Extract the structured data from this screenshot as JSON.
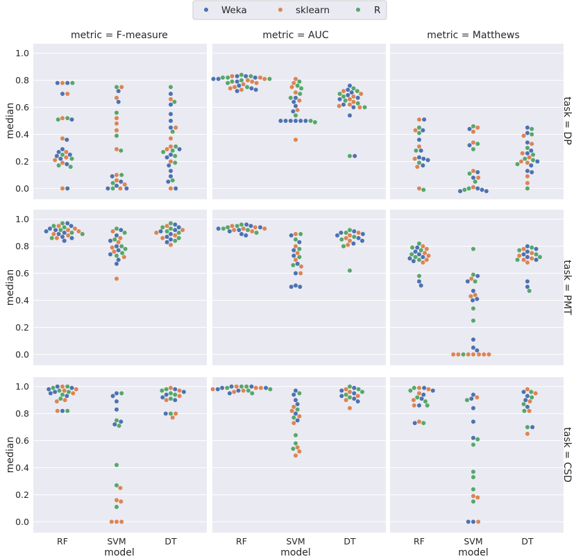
{
  "chart_data": {
    "type": "scatter",
    "subtype": "swarm-grid",
    "legend": {
      "placement": "top-center",
      "entries": [
        {
          "name": "Weka",
          "color": "#4c72b0"
        },
        {
          "name": "sklearn",
          "color": "#dd8452"
        },
        {
          "name": "R",
          "color": "#55a868"
        }
      ]
    },
    "columns": [
      "metric = F-measure",
      "metric = AUC",
      "metric = Matthews"
    ],
    "rows": [
      "task = DP",
      "task = PMT",
      "task = CSD"
    ],
    "categories": [
      "RF",
      "SVM",
      "DT"
    ],
    "xlabel": "model",
    "ylabel": "median",
    "ylim": [
      -0.08,
      1.07
    ],
    "yticks": [
      "0.0",
      "0.2",
      "0.4",
      "0.6",
      "0.8",
      "1.0"
    ],
    "grid": true,
    "panels": [
      {
        "row": 0,
        "col": 0,
        "series": {
          "RF": {
            "Weka": [
              0.78,
              0.78,
              0.7,
              0.51,
              0.36,
              0.29,
              0.27,
              0.25,
              0.24,
              0.22,
              0.18,
              0.0
            ],
            "sklearn": [
              0.78,
              0.7,
              0.52,
              0.37,
              0.27,
              0.23,
              0.21,
              0.19,
              0.0
            ],
            "R": [
              0.78,
              0.52,
              0.51,
              0.25,
              0.22,
              0.17,
              0.16
            ]
          },
          "SVM": {
            "Weka": [
              0.72,
              0.64,
              0.09,
              0.05,
              0.02,
              0.0,
              0.0
            ],
            "sklearn": [
              0.75,
              0.67,
              0.52,
              0.48,
              0.43,
              0.29,
              0.1,
              0.06,
              0.03,
              0.0
            ],
            "R": [
              0.75,
              0.56,
              0.39,
              0.28,
              0.1,
              0.04,
              0.0
            ]
          },
          "DT": {
            "Weka": [
              0.7,
              0.62,
              0.55,
              0.5,
              0.45,
              0.29,
              0.25,
              0.23,
              0.17,
              0.13,
              0.09,
              0.05,
              0.0
            ],
            "sklearn": [
              0.66,
              0.45,
              0.37,
              0.31,
              0.29,
              0.2,
              0.0
            ],
            "R": [
              0.75,
              0.64,
              0.42,
              0.31,
              0.28,
              0.27,
              0.24,
              0.19,
              0.06
            ]
          }
        }
      },
      {
        "row": 0,
        "col": 1,
        "series": {
          "RF": {
            "Weka": [
              0.83,
              0.83,
              0.82,
              0.81,
              0.81,
              0.79,
              0.76,
              0.74,
              0.73,
              0.72
            ],
            "sklearn": [
              0.83,
              0.82,
              0.81,
              0.8,
              0.79,
              0.78,
              0.77,
              0.75,
              0.74,
              0.73
            ],
            "R": [
              0.84,
              0.83,
              0.82,
              0.82,
              0.81,
              0.8,
              0.79,
              0.78,
              0.75
            ]
          },
          "SVM": {
            "Weka": [
              0.67,
              0.64,
              0.61,
              0.57,
              0.5,
              0.5,
              0.5,
              0.5,
              0.5,
              0.5
            ],
            "sklearn": [
              0.81,
              0.78,
              0.75,
              0.71,
              0.65,
              0.58,
              0.36
            ],
            "R": [
              0.79,
              0.76,
              0.74,
              0.7,
              0.67,
              0.54,
              0.5,
              0.49
            ]
          },
          "DT": {
            "Weka": [
              0.76,
              0.73,
              0.71,
              0.69,
              0.67,
              0.66,
              0.62,
              0.6,
              0.54,
              0.24
            ],
            "sklearn": [
              0.72,
              0.7,
              0.68,
              0.66,
              0.64,
              0.62,
              0.61,
              0.6
            ],
            "R": [
              0.74,
              0.72,
              0.7,
              0.68,
              0.65,
              0.63,
              0.6,
              0.24
            ]
          }
        }
      },
      {
        "row": 0,
        "col": 2,
        "series": {
          "RF": {
            "Weka": [
              0.51,
              0.43,
              0.36,
              0.28,
              0.23,
              0.22,
              0.21,
              0.17
            ],
            "sklearn": [
              0.51,
              0.43,
              0.31,
              0.22,
              0.16,
              0.0
            ],
            "R": [
              0.45,
              0.41,
              0.28,
              0.19,
              -0.01
            ]
          },
          "SVM": {
            "Weka": [
              0.44,
              0.32,
              0.12,
              0.08,
              0.0,
              -0.02,
              -0.02,
              -0.01
            ],
            "sklearn": [
              0.45,
              0.42,
              0.34,
              0.13,
              0.08,
              0.01
            ],
            "R": [
              0.46,
              0.33,
              0.29,
              0.11,
              0.05,
              0.0,
              -0.01
            ]
          },
          "DT": {
            "Weka": [
              0.45,
              0.41,
              0.34,
              0.28,
              0.26,
              0.2,
              0.17,
              0.13,
              0.12
            ],
            "sklearn": [
              0.39,
              0.33,
              0.26,
              0.23,
              0.2,
              0.19,
              0.09,
              0.04
            ],
            "R": [
              0.44,
              0.4,
              0.3,
              0.25,
              0.22,
              0.21,
              0.18,
              0.0
            ]
          }
        }
      },
      {
        "row": 1,
        "col": 0,
        "series": {
          "RF": {
            "Weka": [
              0.97,
              0.95,
              0.93,
              0.92,
              0.91,
              0.9,
              0.89,
              0.87,
              0.86,
              0.84
            ],
            "sklearn": [
              0.95,
              0.93,
              0.92,
              0.91,
              0.89,
              0.88,
              0.86
            ],
            "R": [
              0.97,
              0.95,
              0.94,
              0.92,
              0.9,
              0.89,
              0.86
            ]
          },
          "SVM": {
            "Weka": [
              0.92,
              0.88,
              0.84,
              0.8,
              0.77,
              0.74,
              0.7,
              0.67
            ],
            "sklearn": [
              0.91,
              0.86,
              0.83,
              0.79,
              0.76,
              0.72,
              0.56
            ],
            "R": [
              0.93,
              0.9,
              0.85,
              0.8,
              0.78,
              0.75,
              0.73
            ]
          },
          "DT": {
            "Weka": [
              0.96,
              0.94,
              0.92,
              0.91,
              0.89,
              0.87,
              0.85,
              0.83
            ],
            "sklearn": [
              0.95,
              0.92,
              0.9,
              0.88,
              0.86,
              0.81
            ],
            "R": [
              0.97,
              0.94,
              0.93,
              0.91,
              0.9,
              0.86,
              0.84
            ]
          }
        }
      },
      {
        "row": 1,
        "col": 1,
        "series": {
          "RF": {
            "Weka": [
              0.96,
              0.95,
              0.94,
              0.93,
              0.92,
              0.91,
              0.89,
              0.88
            ],
            "sklearn": [
              0.95,
              0.94,
              0.93,
              0.93,
              0.92,
              0.91
            ],
            "R": [
              0.96,
              0.95,
              0.94,
              0.93,
              0.92,
              0.9
            ]
          },
          "SVM": {
            "Weka": [
              0.88,
              0.83,
              0.77,
              0.73,
              0.67,
              0.6,
              0.51,
              0.5,
              0.5
            ],
            "sklearn": [
              0.89,
              0.8,
              0.75,
              0.7,
              0.65,
              0.6
            ],
            "R": [
              0.89,
              0.85,
              0.78,
              0.72,
              0.66
            ]
          },
          "DT": {
            "Weka": [
              0.91,
              0.9,
              0.89,
              0.88,
              0.86,
              0.84,
              0.82
            ],
            "sklearn": [
              0.9,
              0.88,
              0.86,
              0.84,
              0.81
            ],
            "R": [
              0.92,
              0.9,
              0.87,
              0.85,
              0.8,
              0.62
            ]
          }
        }
      },
      {
        "row": 1,
        "col": 2,
        "series": {
          "RF": {
            "Weka": [
              0.79,
              0.76,
              0.74,
              0.72,
              0.71,
              0.69,
              0.54,
              0.51
            ],
            "sklearn": [
              0.8,
              0.78,
              0.75,
              0.73,
              0.7,
              0.68
            ],
            "R": [
              0.82,
              0.79,
              0.77,
              0.74,
              0.72,
              0.7,
              0.58
            ]
          },
          "SVM": {
            "Weka": [
              0.58,
              0.54,
              0.47,
              0.41,
              0.4,
              0.11,
              0.05,
              0.03
            ],
            "sklearn": [
              0.56,
              0.44,
              0.43,
              0.0,
              0.0,
              0.0,
              0.0,
              0.0,
              0.0,
              0.0
            ],
            "R": [
              0.78,
              0.59,
              0.54,
              0.34,
              0.25,
              0.0
            ]
          },
          "DT": {
            "Weka": [
              0.8,
              0.78,
              0.76,
              0.74,
              0.72,
              0.7,
              0.54,
              0.5
            ],
            "sklearn": [
              0.78,
              0.75,
              0.73,
              0.71,
              0.7,
              0.68
            ],
            "R": [
              0.79,
              0.77,
              0.74,
              0.72,
              0.7,
              0.47
            ]
          }
        }
      },
      {
        "row": 2,
        "col": 0,
        "series": {
          "RF": {
            "Weka": [
              1.0,
              0.99,
              0.98,
              0.96,
              0.95,
              0.93,
              0.82
            ],
            "sklearn": [
              1.0,
              0.98,
              0.97,
              0.95,
              0.9,
              0.89,
              0.82
            ],
            "R": [
              1.0,
              0.99,
              0.97,
              0.96,
              0.94,
              0.91,
              0.82
            ]
          },
          "SVM": {
            "Weka": [
              0.95,
              0.93,
              0.89,
              0.83,
              0.74,
              0.72
            ],
            "sklearn": [
              0.25,
              0.16,
              0.15,
              0.0,
              0.0,
              0.0
            ],
            "R": [
              0.95,
              0.75,
              0.71,
              0.42,
              0.27,
              0.11
            ]
          },
          "DT": {
            "Weka": [
              0.98,
              0.96,
              0.94,
              0.92,
              0.9,
              0.8
            ],
            "sklearn": [
              0.99,
              0.97,
              0.93,
              0.9,
              0.8,
              0.77
            ],
            "R": [
              0.98,
              0.97,
              0.95,
              0.94,
              0.91,
              0.8
            ]
          }
        }
      },
      {
        "row": 2,
        "col": 1,
        "series": {
          "RF": {
            "Weka": [
              1.0,
              1.0,
              0.99,
              0.99,
              0.98,
              0.97,
              0.95
            ],
            "sklearn": [
              1.0,
              0.99,
              0.99,
              0.98,
              0.97,
              0.96
            ],
            "R": [
              1.0,
              1.0,
              0.99,
              0.98,
              0.97,
              0.95
            ]
          },
          "SVM": {
            "Weka": [
              0.97,
              0.94,
              0.9,
              0.87,
              0.8,
              0.75
            ],
            "sklearn": [
              0.85,
              0.82,
              0.78,
              0.73,
              0.55,
              0.52,
              0.49
            ],
            "R": [
              0.95,
              0.83,
              0.77,
              0.64,
              0.58,
              0.54
            ]
          },
          "DT": {
            "Weka": [
              0.99,
              0.97,
              0.95,
              0.93,
              0.91,
              0.89
            ],
            "sklearn": [
              0.98,
              0.96,
              0.93,
              0.9,
              0.84
            ],
            "R": [
              1.0,
              0.98,
              0.96,
              0.94,
              0.92
            ]
          }
        }
      },
      {
        "row": 2,
        "col": 2,
        "series": {
          "RF": {
            "Weka": [
              0.99,
              0.97,
              0.94,
              0.91,
              0.86,
              0.73
            ],
            "sklearn": [
              0.99,
              0.98,
              0.95,
              0.9,
              0.86,
              0.74
            ],
            "R": [
              0.99,
              0.97,
              0.92,
              0.89,
              0.86,
              0.73
            ]
          },
          "SVM": {
            "Weka": [
              0.94,
              0.91,
              0.84,
              0.74,
              0.62,
              0.0,
              0.0
            ],
            "sklearn": [
              0.92,
              0.19,
              0.18,
              0.0
            ],
            "R": [
              0.9,
              0.61,
              0.57,
              0.37,
              0.33,
              0.24,
              0.15
            ]
          },
          "DT": {
            "Weka": [
              0.96,
              0.93,
              0.9,
              0.85,
              0.7
            ],
            "sklearn": [
              0.98,
              0.95,
              0.89,
              0.82,
              0.65
            ],
            "R": [
              0.96,
              0.92,
              0.87,
              0.82,
              0.7
            ]
          }
        }
      }
    ]
  }
}
